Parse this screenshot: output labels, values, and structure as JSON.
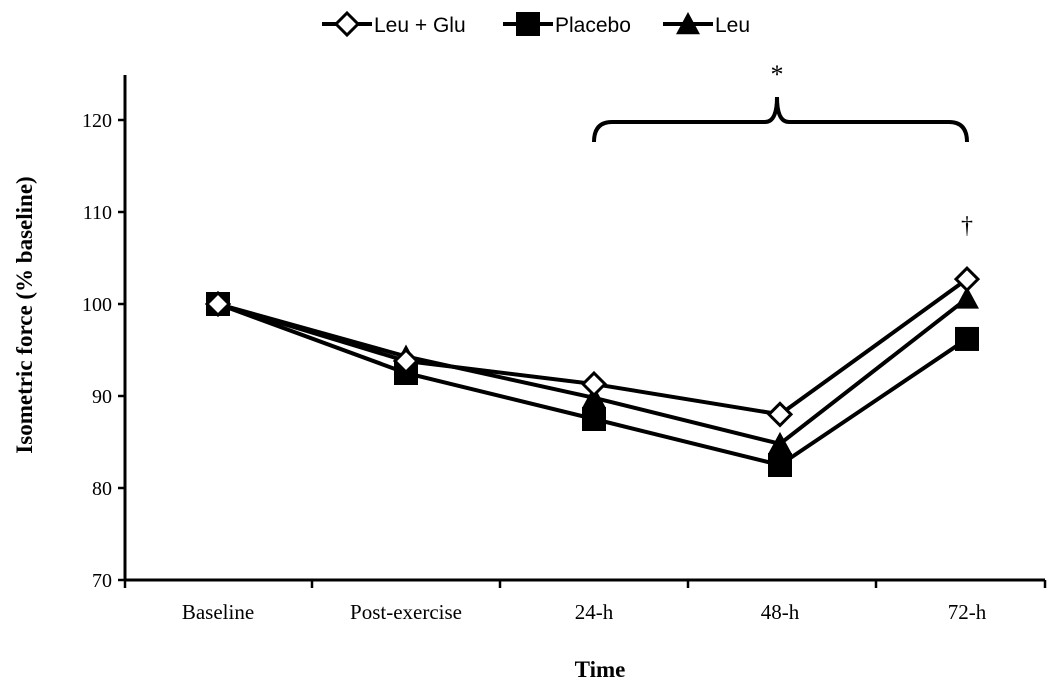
{
  "chart_data": {
    "type": "line",
    "categories": [
      "Baseline",
      "Post-exercise",
      "24-h",
      "48-h",
      "72-h"
    ],
    "series": [
      {
        "name": "Leu + Glu",
        "marker": "open-diamond",
        "values": [
          100,
          93.8,
          91.3,
          88.0,
          102.7
        ]
      },
      {
        "name": "Placebo",
        "marker": "filled-square",
        "values": [
          100,
          92.5,
          87.5,
          82.5,
          96.2
        ]
      },
      {
        "name": "Leu",
        "marker": "filled-triangle",
        "values": [
          100,
          94.3,
          89.8,
          84.8,
          100.6
        ]
      }
    ],
    "xlabel": "Time",
    "ylabel": "Isometric force (% baseline)",
    "ylim": [
      70,
      120
    ],
    "yticks": [
      "70",
      "80",
      "90",
      "100",
      "110",
      "120"
    ],
    "grid": false,
    "legend_position": "top-center",
    "annotations": {
      "bracket_mark": "*",
      "bracket_span": [
        "24-h",
        "72-h"
      ],
      "point_mark": "†",
      "point_category": "72-h"
    },
    "colors": {
      "line": "#000000",
      "marker_fill": "#000000",
      "open_marker_fill": "#ffffff"
    }
  }
}
